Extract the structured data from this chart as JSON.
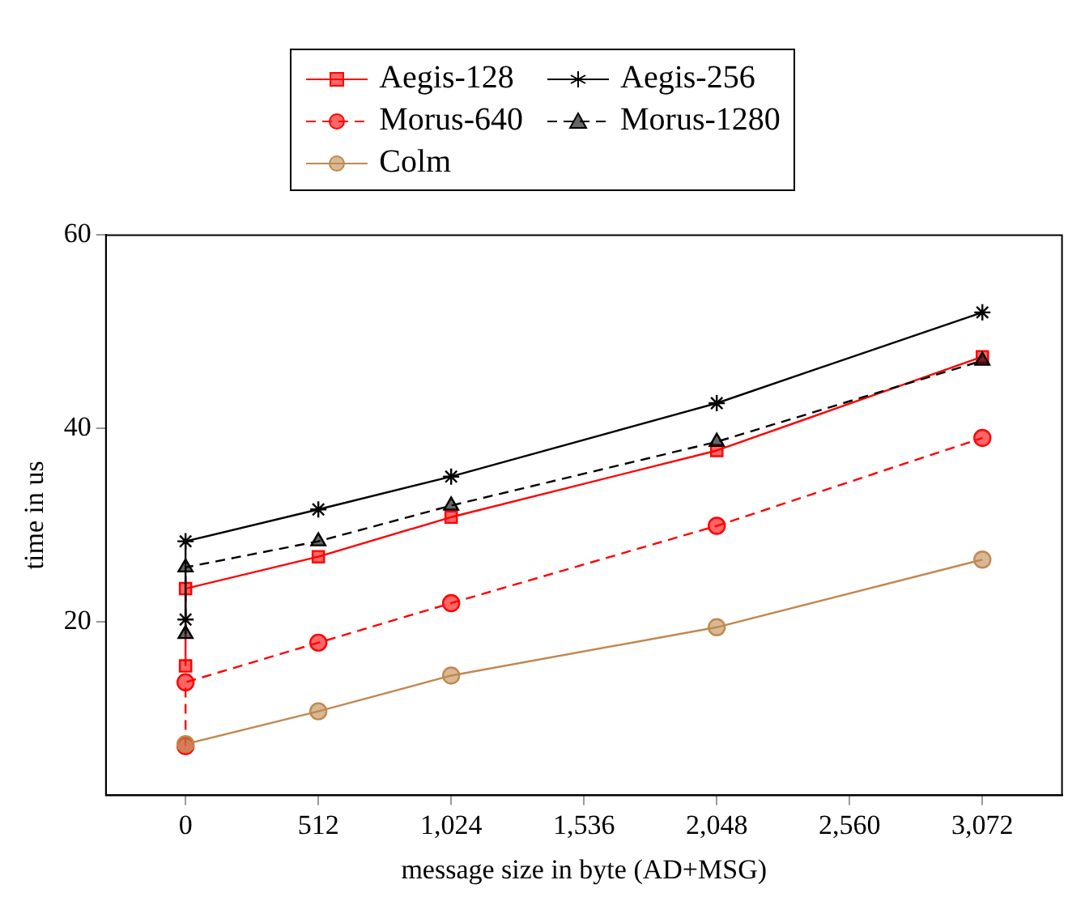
{
  "chart_data": {
    "type": "line",
    "xlabel": "message size in byte (AD+MSG)",
    "ylabel": "time in us",
    "x": [
      0,
      0,
      512,
      1024,
      2048,
      3072
    ],
    "series": [
      {
        "name": "Aegis-128",
        "color": "#ff0000",
        "marker": "square",
        "line_style": "solid",
        "values": [
          15.4,
          23.4,
          26.7,
          30.8,
          37.7,
          47.4
        ]
      },
      {
        "name": "Aegis-256",
        "color": "#000000",
        "marker": "cross",
        "line_style": "solid",
        "values": [
          20.2,
          28.3,
          31.6,
          35.0,
          42.6,
          52.0
        ]
      },
      {
        "name": "Morus-640",
        "color": "#ff0000",
        "marker": "circle",
        "line_style": "dashed",
        "values": [
          7.1,
          13.7,
          17.8,
          21.9,
          29.9,
          39.0
        ]
      },
      {
        "name": "Morus-1280",
        "color": "#000000",
        "marker": "triangle",
        "line_style": "dashed",
        "values": [
          18.7,
          25.6,
          28.3,
          32.0,
          38.6,
          47.0
        ]
      },
      {
        "name": "Colm",
        "color": "#c0894f",
        "marker": "circle",
        "line_style": "solid",
        "x": [
          0,
          512,
          1024,
          2048,
          3072
        ],
        "values": [
          7.3,
          10.7,
          14.4,
          19.4,
          26.4
        ]
      }
    ],
    "xlim": [
      -307,
      3379
    ],
    "ylim": [
      2,
      60
    ],
    "xticks": [
      0,
      512,
      {
        "value": 1024,
        "label": "1,024"
      },
      {
        "value": 1536,
        "label": "1,536"
      },
      {
        "value": 2048,
        "label": "2,048"
      },
      {
        "value": 2560,
        "label": "2,560"
      },
      {
        "value": 3072,
        "label": "3,072"
      }
    ],
    "yticks": [
      20,
      40,
      60
    ],
    "grid": false,
    "legend": "top"
  }
}
